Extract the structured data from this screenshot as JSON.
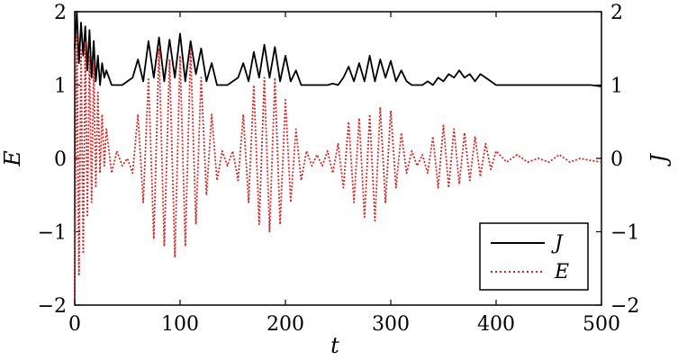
{
  "chart_data": {
    "type": "line",
    "xlabel": "t",
    "ylabel_left": "E",
    "ylabel_right": "J",
    "xlim": [
      0,
      500
    ],
    "ylim_left": [
      -2,
      2
    ],
    "ylim_right": [
      -2,
      2
    ],
    "x_ticks": [
      0,
      100,
      200,
      300,
      400,
      500
    ],
    "y_ticks": [
      -2,
      -1,
      0,
      1,
      2
    ],
    "x_tick_labels": [
      "0",
      "100",
      "200",
      "300",
      "400",
      "500"
    ],
    "y_tick_labels": [
      "−2",
      "−1",
      "0",
      "1",
      "2"
    ],
    "grid": false,
    "legend_position": "bottom-right",
    "series": [
      {
        "name": "J",
        "axis": "right",
        "color": "#000000",
        "style": "solid",
        "x": [
          0,
          2,
          4,
          6,
          8,
          10,
          12,
          14,
          16,
          18,
          20,
          22,
          24,
          26,
          28,
          30,
          35,
          40,
          45,
          50,
          55,
          60,
          65,
          70,
          75,
          80,
          85,
          90,
          95,
          100,
          105,
          110,
          115,
          120,
          125,
          130,
          135,
          140,
          145,
          150,
          155,
          160,
          165,
          170,
          175,
          180,
          185,
          190,
          195,
          200,
          205,
          210,
          215,
          220,
          225,
          230,
          235,
          240,
          245,
          250,
          255,
          260,
          265,
          270,
          275,
          280,
          285,
          290,
          295,
          300,
          305,
          310,
          315,
          320,
          325,
          330,
          335,
          340,
          345,
          350,
          355,
          360,
          365,
          370,
          375,
          380,
          385,
          390,
          395,
          400,
          410,
          420,
          430,
          440,
          450,
          460,
          470,
          480,
          490,
          500
        ],
        "values": [
          1.5,
          2.0,
          1.3,
          1.85,
          1.4,
          1.8,
          1.2,
          1.75,
          1.1,
          1.6,
          1.05,
          1.4,
          1.0,
          1.3,
          1.1,
          1.2,
          1.0,
          1.0,
          1.0,
          1.05,
          1.1,
          1.35,
          1.05,
          1.6,
          1.1,
          1.65,
          1.05,
          1.62,
          1.1,
          1.7,
          1.05,
          1.6,
          1.15,
          1.5,
          1.05,
          1.3,
          1.0,
          1.0,
          1.0,
          1.05,
          1.1,
          1.3,
          1.05,
          1.45,
          1.1,
          1.55,
          1.1,
          1.52,
          1.05,
          1.4,
          1.05,
          1.2,
          1.0,
          1.0,
          1.0,
          1.0,
          1.0,
          1.0,
          1.02,
          1.0,
          1.1,
          1.25,
          1.05,
          1.3,
          1.05,
          1.4,
          1.05,
          1.35,
          1.1,
          1.33,
          1.05,
          1.2,
          1.05,
          1.0,
          1.0,
          1.0,
          1.05,
          1.0,
          1.1,
          1.05,
          1.15,
          1.1,
          1.2,
          1.1,
          1.15,
          1.05,
          1.15,
          1.1,
          1.05,
          1.0,
          1.0,
          1.0,
          1.0,
          1.0,
          1.0,
          1.0,
          1.0,
          1.0,
          1.0,
          0.98
        ]
      },
      {
        "name": "E",
        "axis": "left",
        "color": "#d62728",
        "style": "dotted",
        "x": [
          0,
          2,
          4,
          6,
          8,
          10,
          12,
          14,
          16,
          18,
          20,
          22,
          24,
          26,
          28,
          30,
          35,
          40,
          45,
          50,
          55,
          60,
          65,
          70,
          75,
          80,
          85,
          90,
          95,
          100,
          105,
          110,
          115,
          120,
          125,
          130,
          135,
          140,
          145,
          150,
          155,
          160,
          165,
          170,
          175,
          180,
          185,
          190,
          195,
          200,
          205,
          210,
          215,
          220,
          225,
          230,
          235,
          240,
          245,
          250,
          255,
          260,
          265,
          270,
          275,
          280,
          285,
          290,
          295,
          300,
          305,
          310,
          315,
          320,
          325,
          330,
          335,
          340,
          345,
          350,
          355,
          360,
          365,
          370,
          375,
          380,
          385,
          390,
          395,
          400,
          410,
          420,
          430,
          440,
          450,
          460,
          470,
          480,
          490,
          500
        ],
        "values": [
          -1.9,
          1.7,
          -1.6,
          1.5,
          -1.3,
          1.6,
          -0.8,
          1.4,
          -0.6,
          1.3,
          -0.4,
          0.9,
          -0.2,
          0.6,
          -0.1,
          0.4,
          -0.2,
          0.1,
          -0.1,
          0.0,
          -0.2,
          0.6,
          -0.6,
          1.1,
          -1.1,
          1.5,
          -1.2,
          1.35,
          -1.35,
          1.4,
          -1.2,
          1.5,
          -0.9,
          1.1,
          -0.5,
          0.6,
          -0.3,
          0.1,
          -0.1,
          0.1,
          -0.3,
          0.6,
          -0.6,
          1.0,
          -0.9,
          1.1,
          -1.0,
          1.1,
          -0.9,
          0.8,
          -0.6,
          0.4,
          -0.3,
          0.1,
          -0.1,
          0.05,
          -0.1,
          0.1,
          -0.2,
          0.2,
          -0.4,
          0.5,
          -0.6,
          0.55,
          -0.8,
          0.6,
          -0.85,
          0.7,
          -0.6,
          0.65,
          -0.4,
          0.35,
          -0.2,
          0.1,
          -0.1,
          0.05,
          -0.2,
          0.3,
          -0.4,
          0.45,
          -0.4,
          0.4,
          -0.35,
          0.35,
          -0.3,
          0.3,
          -0.25,
          0.2,
          -0.15,
          0.1,
          -0.05,
          0.05,
          -0.05,
          0.0,
          -0.05,
          0.05,
          -0.05,
          0.0,
          -0.03,
          -0.05
        ]
      }
    ]
  }
}
